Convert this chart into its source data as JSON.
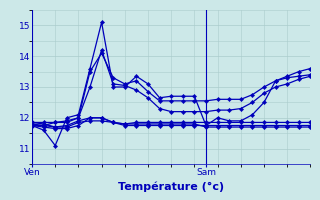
{
  "xlabel": "Température (°c)",
  "background_color": "#cce8e8",
  "grid_color": "#aacccc",
  "line_color": "#0000bb",
  "text_color": "#0000bb",
  "ylim": [
    10.5,
    15.5
  ],
  "xlim": [
    0,
    48
  ],
  "yticks": [
    11,
    12,
    13,
    14,
    15
  ],
  "xtick_pos": [
    0,
    30
  ],
  "xtick_labels": [
    "Ven",
    "Sam"
  ],
  "series": [
    {
      "x": [
        0,
        2,
        4,
        6,
        8,
        10,
        12,
        14,
        16,
        18,
        20,
        22,
        24,
        26,
        28,
        30,
        32,
        34,
        36,
        38,
        40,
        42,
        44,
        46,
        48
      ],
      "y": [
        11.75,
        11.6,
        11.1,
        12.0,
        12.1,
        13.6,
        15.1,
        13.0,
        13.0,
        13.35,
        13.1,
        12.65,
        12.7,
        12.7,
        12.7,
        11.75,
        12.0,
        11.9,
        11.9,
        12.1,
        12.5,
        13.2,
        13.35,
        13.5,
        13.6
      ]
    },
    {
      "x": [
        0,
        2,
        4,
        6,
        8,
        10,
        12,
        14,
        16,
        18,
        20,
        22,
        24,
        26,
        28,
        30,
        32,
        34,
        36,
        38,
        40,
        42,
        44,
        46,
        48
      ],
      "y": [
        11.75,
        11.75,
        11.85,
        11.85,
        12.0,
        13.5,
        14.1,
        13.3,
        13.1,
        13.2,
        12.85,
        12.55,
        12.55,
        12.55,
        12.55,
        12.55,
        12.6,
        12.6,
        12.6,
        12.75,
        13.0,
        13.2,
        13.3,
        13.35,
        13.4
      ]
    },
    {
      "x": [
        0,
        2,
        4,
        6,
        8,
        10,
        12,
        14,
        16,
        18,
        20,
        22,
        24,
        26,
        28,
        30,
        32,
        34,
        36,
        38,
        40,
        42,
        44,
        46,
        48
      ],
      "y": [
        11.85,
        11.85,
        11.85,
        11.9,
        12.0,
        13.0,
        14.2,
        13.1,
        13.05,
        12.9,
        12.65,
        12.3,
        12.2,
        12.2,
        12.2,
        12.2,
        12.25,
        12.25,
        12.3,
        12.5,
        12.8,
        13.0,
        13.1,
        13.25,
        13.35
      ]
    },
    {
      "x": [
        0,
        2,
        4,
        6,
        8,
        10,
        12,
        14,
        16,
        18,
        20,
        22,
        24,
        26,
        28,
        30,
        32,
        34,
        36,
        38,
        40,
        42,
        44,
        46,
        48
      ],
      "y": [
        11.85,
        11.8,
        11.7,
        11.75,
        11.9,
        12.0,
        12.0,
        11.85,
        11.8,
        11.85,
        11.85,
        11.85,
        11.85,
        11.85,
        11.85,
        11.85,
        11.85,
        11.85,
        11.85,
        11.85,
        11.85,
        11.85,
        11.85,
        11.85,
        11.85
      ]
    },
    {
      "x": [
        0,
        2,
        4,
        6,
        8,
        10,
        12,
        14,
        16,
        18,
        20,
        22,
        24,
        26,
        28,
        30,
        32,
        34,
        36,
        38,
        40,
        42,
        44,
        46,
        48
      ],
      "y": [
        11.8,
        11.75,
        11.7,
        11.7,
        11.85,
        11.9,
        11.9,
        11.85,
        11.75,
        11.75,
        11.75,
        11.75,
        11.75,
        11.75,
        11.75,
        11.75,
        11.75,
        11.75,
        11.75,
        11.75,
        11.75,
        11.75,
        11.75,
        11.75,
        11.75
      ]
    },
    {
      "x": [
        0,
        2,
        4,
        6,
        8,
        10,
        12,
        14,
        16,
        18,
        20,
        22,
        24,
        26,
        28,
        30,
        32,
        34,
        36,
        38,
        40,
        42,
        44,
        46,
        48
      ],
      "y": [
        11.75,
        11.7,
        11.65,
        11.65,
        11.75,
        12.0,
        12.0,
        11.85,
        11.8,
        11.8,
        11.8,
        11.8,
        11.8,
        11.8,
        11.8,
        11.7,
        11.7,
        11.7,
        11.7,
        11.7,
        11.7,
        11.7,
        11.7,
        11.7,
        11.7
      ]
    }
  ]
}
